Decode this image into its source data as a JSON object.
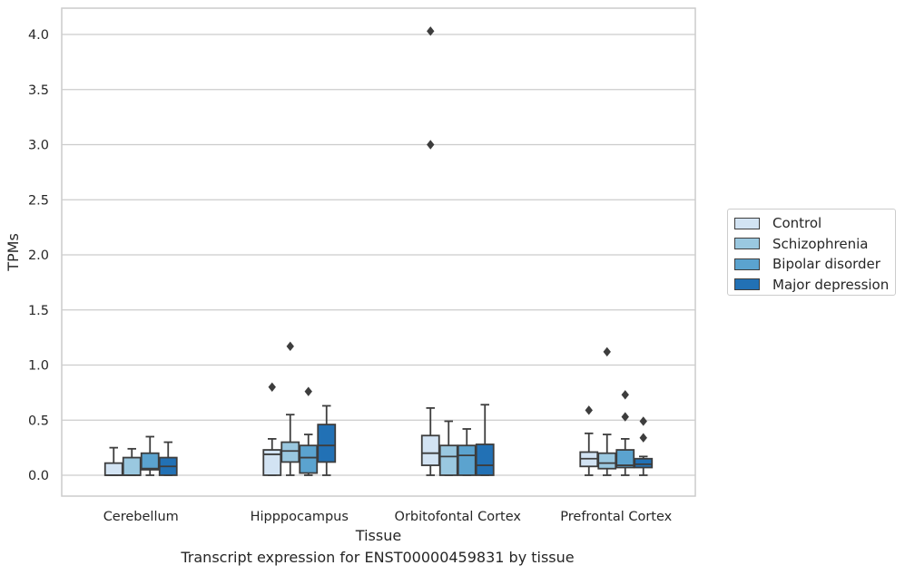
{
  "chart_data": {
    "type": "box",
    "xlabel": "Tissue",
    "ylabel": "TPMs",
    "ylim": [
      -0.2,
      4.25
    ],
    "yticks": [
      0.0,
      0.5,
      1.0,
      1.5,
      2.0,
      2.5,
      3.0,
      3.5,
      4.0
    ],
    "ytick_labels": [
      "0.0",
      "0.5",
      "1.0",
      "1.5",
      "2.0",
      "2.5",
      "3.0",
      "3.5",
      "4.0"
    ],
    "grid": "horizontal",
    "legend_position": "right",
    "categories": [
      "Cerebellum",
      "Hipppocampus",
      "Orbitofontal Cortex",
      "Prefrontal Cortex"
    ],
    "series": [
      {
        "name": "Control",
        "color": "#d2e3f3",
        "boxes": [
          {
            "whislo": 0.0,
            "q1": 0.0,
            "med": 0.0,
            "q3": 0.11,
            "whishi": 0.25,
            "fliers": []
          },
          {
            "whislo": 0.0,
            "q1": 0.0,
            "med": 0.19,
            "q3": 0.23,
            "whishi": 0.33,
            "fliers": [
              0.8
            ]
          },
          {
            "whislo": 0.0,
            "q1": 0.09,
            "med": 0.2,
            "q3": 0.36,
            "whishi": 0.61,
            "fliers": [
              3.0,
              4.03
            ]
          },
          {
            "whislo": 0.0,
            "q1": 0.08,
            "med": 0.15,
            "q3": 0.21,
            "whishi": 0.38,
            "fliers": [
              0.59
            ]
          }
        ]
      },
      {
        "name": "Schizophrenia",
        "color": "#9ac8e0",
        "boxes": [
          {
            "whislo": 0.0,
            "q1": 0.0,
            "med": 0.0,
            "q3": 0.16,
            "whishi": 0.24,
            "fliers": []
          },
          {
            "whislo": 0.0,
            "q1": 0.12,
            "med": 0.22,
            "q3": 0.3,
            "whishi": 0.55,
            "fliers": [
              1.17
            ]
          },
          {
            "whislo": 0.0,
            "q1": 0.0,
            "med": 0.17,
            "q3": 0.27,
            "whishi": 0.49,
            "fliers": []
          },
          {
            "whislo": 0.0,
            "q1": 0.06,
            "med": 0.11,
            "q3": 0.2,
            "whishi": 0.37,
            "fliers": [
              1.12
            ]
          }
        ]
      },
      {
        "name": "Bipolar disorder",
        "color": "#5ba3cf",
        "boxes": [
          {
            "whislo": 0.0,
            "q1": 0.05,
            "med": 0.06,
            "q3": 0.2,
            "whishi": 0.35,
            "fliers": []
          },
          {
            "whislo": 0.0,
            "q1": 0.02,
            "med": 0.16,
            "q3": 0.27,
            "whishi": 0.37,
            "fliers": [
              0.76
            ]
          },
          {
            "whislo": 0.0,
            "q1": 0.0,
            "med": 0.18,
            "q3": 0.27,
            "whishi": 0.42,
            "fliers": []
          },
          {
            "whislo": 0.0,
            "q1": 0.07,
            "med": 0.09,
            "q3": 0.23,
            "whishi": 0.33,
            "fliers": [
              0.73,
              0.53
            ]
          }
        ]
      },
      {
        "name": "Major depression",
        "color": "#2271b5",
        "boxes": [
          {
            "whislo": 0.0,
            "q1": 0.0,
            "med": 0.08,
            "q3": 0.16,
            "whishi": 0.3,
            "fliers": []
          },
          {
            "whislo": 0.0,
            "q1": 0.12,
            "med": 0.27,
            "q3": 0.46,
            "whishi": 0.63,
            "fliers": []
          },
          {
            "whislo": 0.0,
            "q1": 0.0,
            "med": 0.09,
            "q3": 0.28,
            "whishi": 0.64,
            "fliers": []
          },
          {
            "whislo": 0.0,
            "q1": 0.07,
            "med": 0.1,
            "q3": 0.15,
            "whishi": 0.17,
            "fliers": [
              0.49,
              0.34
            ]
          }
        ]
      }
    ]
  },
  "caption": "Transcript expression for ENST00000459831 by tissue",
  "colors": {
    "grid": "#cccccc",
    "outline": "#3d3d3d",
    "axes_frame": "#cccccc"
  }
}
